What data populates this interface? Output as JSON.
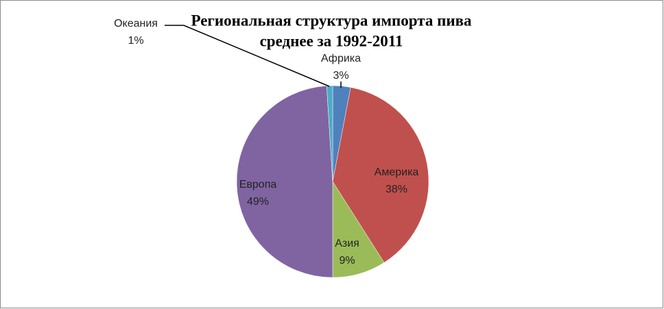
{
  "chart_data": {
    "type": "pie",
    "title": "Региональная структура импорта пива",
    "subtitle": "среднее за 1992-2011",
    "categories": [
      "Африка",
      "Америка",
      "Азия",
      "Европа",
      "Океания"
    ],
    "values": [
      3,
      38,
      9,
      49,
      1
    ],
    "value_labels": [
      "3%",
      "38%",
      "9%",
      "49%",
      "1%"
    ],
    "colors": [
      "#4f81bd",
      "#c0504d",
      "#9bbb59",
      "#8064a2",
      "#4bacc6"
    ]
  }
}
